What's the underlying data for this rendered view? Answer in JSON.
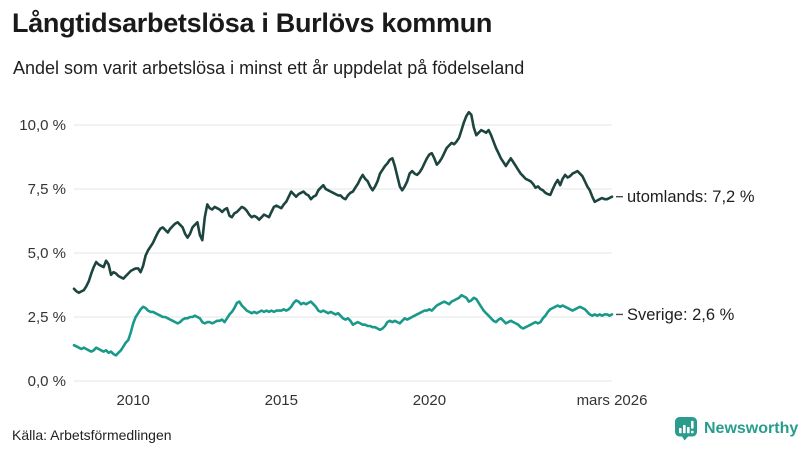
{
  "header": {
    "title": "Långtidsarbetslösa i Burlövs kommun",
    "subtitle": "Andel som varit arbetslösa i minst ett år uppdelat på födelseland"
  },
  "footer": {
    "source": "Källa: Arbetsförmedlingen",
    "brand": "Newsworthy"
  },
  "colors": {
    "background": "#ffffff",
    "grid": "#e6e6e6",
    "axis_text": "#333333",
    "label_text": "#1f1f1f",
    "dash": "#4a4a4a",
    "brand": "#2a9c8e"
  },
  "chart_data": {
    "type": "line",
    "title": "Långtidsarbetslösa i Burlövs kommun",
    "subtitle": "Andel som varit arbetslösa i minst ett år uppdelat på födelseland",
    "unit": "%",
    "resolution": "monthly",
    "x_start_year": 2008,
    "x_end_year_decimal": 2026.1667,
    "x_end_label": "mars 2026",
    "ylim": [
      0,
      10
    ],
    "grid": "horizontal",
    "legend_position": "line-end-labels",
    "y_ticks": [
      {
        "label": "0,0 %",
        "value": 0
      },
      {
        "label": "2,5 %",
        "value": 2.5
      },
      {
        "label": "5,0 %",
        "value": 5
      },
      {
        "label": "7,5 %",
        "value": 7.5
      },
      {
        "label": "10,0 %",
        "value": 10
      }
    ],
    "x_ticks": [
      {
        "label": "2010",
        "year": 2010
      },
      {
        "label": "2015",
        "year": 2015
      },
      {
        "label": "2020",
        "year": 2020
      },
      {
        "label": "mars 2026",
        "year": 2026.1667
      }
    ],
    "series": [
      {
        "name": "utomlands",
        "label": "utomlands: 7,2 %",
        "end_value": 7.2,
        "color": "#1d453f",
        "start_year": 2008,
        "values_monthly": [
          3.6,
          3.5,
          3.45,
          3.5,
          3.55,
          3.7,
          3.9,
          4.2,
          4.45,
          4.65,
          4.55,
          4.5,
          4.45,
          4.7,
          4.55,
          4.15,
          4.25,
          4.2,
          4.1,
          4.05,
          4.0,
          4.1,
          4.2,
          4.3,
          4.35,
          4.4,
          4.4,
          4.25,
          4.5,
          4.9,
          5.1,
          5.25,
          5.4,
          5.6,
          5.8,
          5.95,
          6.0,
          5.9,
          5.8,
          5.95,
          6.05,
          6.15,
          6.2,
          6.1,
          6.0,
          5.75,
          5.6,
          5.75,
          6.0,
          6.1,
          6.2,
          5.7,
          5.5,
          6.4,
          6.9,
          6.75,
          6.7,
          6.8,
          6.75,
          6.7,
          6.6,
          6.7,
          6.75,
          6.45,
          6.4,
          6.55,
          6.6,
          6.7,
          6.8,
          6.75,
          6.65,
          6.5,
          6.4,
          6.45,
          6.4,
          6.3,
          6.4,
          6.5,
          6.45,
          6.4,
          6.6,
          6.8,
          6.85,
          6.8,
          6.75,
          6.9,
          7.0,
          7.2,
          7.4,
          7.3,
          7.2,
          7.3,
          7.35,
          7.4,
          7.3,
          7.25,
          7.1,
          7.2,
          7.25,
          7.45,
          7.55,
          7.65,
          7.5,
          7.45,
          7.4,
          7.35,
          7.3,
          7.25,
          7.25,
          7.15,
          7.1,
          7.25,
          7.35,
          7.4,
          7.55,
          7.7,
          7.9,
          8.05,
          7.9,
          7.8,
          7.6,
          7.45,
          7.6,
          7.8,
          8.1,
          8.25,
          8.4,
          8.5,
          8.65,
          8.7,
          8.4,
          8.0,
          7.6,
          7.45,
          7.6,
          7.8,
          8.1,
          8.2,
          8.1,
          8.05,
          8.15,
          8.3,
          8.5,
          8.7,
          8.85,
          8.9,
          8.7,
          8.45,
          8.55,
          8.7,
          8.9,
          9.1,
          9.2,
          9.3,
          9.25,
          9.35,
          9.5,
          9.8,
          10.1,
          10.35,
          10.5,
          10.4,
          9.9,
          9.6,
          9.7,
          9.8,
          9.75,
          9.7,
          9.8,
          9.6,
          9.35,
          9.1,
          8.9,
          8.7,
          8.55,
          8.4,
          8.55,
          8.7,
          8.55,
          8.4,
          8.25,
          8.1,
          8.0,
          7.9,
          7.85,
          7.8,
          7.7,
          7.55,
          7.6,
          7.5,
          7.45,
          7.35,
          7.3,
          7.27,
          7.5,
          7.7,
          7.85,
          7.65,
          7.9,
          8.05,
          7.95,
          8.0,
          8.1,
          8.15,
          8.2,
          8.1,
          8.0,
          7.8,
          7.6,
          7.45,
          7.2,
          7.0,
          7.05,
          7.1,
          7.15,
          7.1,
          7.1,
          7.15,
          7.2
        ]
      },
      {
        "name": "Sverige",
        "label": "Sverige: 2,6 %",
        "end_value": 2.6,
        "color": "#19998a",
        "start_year": 2008,
        "values_monthly": [
          1.4,
          1.35,
          1.3,
          1.25,
          1.3,
          1.25,
          1.2,
          1.15,
          1.2,
          1.3,
          1.25,
          1.2,
          1.15,
          1.2,
          1.1,
          1.15,
          1.05,
          1.0,
          1.1,
          1.2,
          1.35,
          1.5,
          1.6,
          1.9,
          2.25,
          2.5,
          2.65,
          2.8,
          2.9,
          2.85,
          2.75,
          2.7,
          2.7,
          2.65,
          2.6,
          2.55,
          2.5,
          2.5,
          2.45,
          2.4,
          2.35,
          2.3,
          2.25,
          2.3,
          2.4,
          2.45,
          2.45,
          2.5,
          2.5,
          2.55,
          2.5,
          2.45,
          2.3,
          2.25,
          2.3,
          2.3,
          2.25,
          2.3,
          2.35,
          2.35,
          2.4,
          2.3,
          2.45,
          2.6,
          2.7,
          2.85,
          3.05,
          3.1,
          2.95,
          2.85,
          2.75,
          2.7,
          2.65,
          2.7,
          2.65,
          2.7,
          2.75,
          2.7,
          2.75,
          2.7,
          2.75,
          2.7,
          2.75,
          2.75,
          2.75,
          2.8,
          2.75,
          2.8,
          2.9,
          3.05,
          3.15,
          3.1,
          3.0,
          3.05,
          3.0,
          3.05,
          3.1,
          3.0,
          2.9,
          2.75,
          2.7,
          2.75,
          2.7,
          2.65,
          2.7,
          2.65,
          2.6,
          2.65,
          2.55,
          2.45,
          2.4,
          2.45,
          2.35,
          2.2,
          2.25,
          2.3,
          2.25,
          2.2,
          2.2,
          2.15,
          2.15,
          2.1,
          2.1,
          2.05,
          2.0,
          2.05,
          2.15,
          2.3,
          2.35,
          2.3,
          2.35,
          2.3,
          2.25,
          2.35,
          2.45,
          2.4,
          2.45,
          2.5,
          2.55,
          2.6,
          2.65,
          2.7,
          2.75,
          2.75,
          2.8,
          2.75,
          2.85,
          2.95,
          3.0,
          3.05,
          3.1,
          3.05,
          3.0,
          3.1,
          3.15,
          3.2,
          3.25,
          3.35,
          3.3,
          3.25,
          3.1,
          3.15,
          3.25,
          3.2,
          3.05,
          2.9,
          2.75,
          2.65,
          2.55,
          2.45,
          2.35,
          2.3,
          2.4,
          2.45,
          2.35,
          2.25,
          2.3,
          2.35,
          2.3,
          2.25,
          2.2,
          2.1,
          2.05,
          2.1,
          2.15,
          2.2,
          2.25,
          2.3,
          2.25,
          2.3,
          2.45,
          2.55,
          2.7,
          2.8,
          2.85,
          2.9,
          2.95,
          2.9,
          2.95,
          2.9,
          2.85,
          2.8,
          2.75,
          2.8,
          2.85,
          2.9,
          2.85,
          2.8,
          2.7,
          2.6,
          2.55,
          2.6,
          2.55,
          2.6,
          2.55,
          2.6,
          2.6,
          2.55,
          2.6
        ]
      }
    ]
  }
}
